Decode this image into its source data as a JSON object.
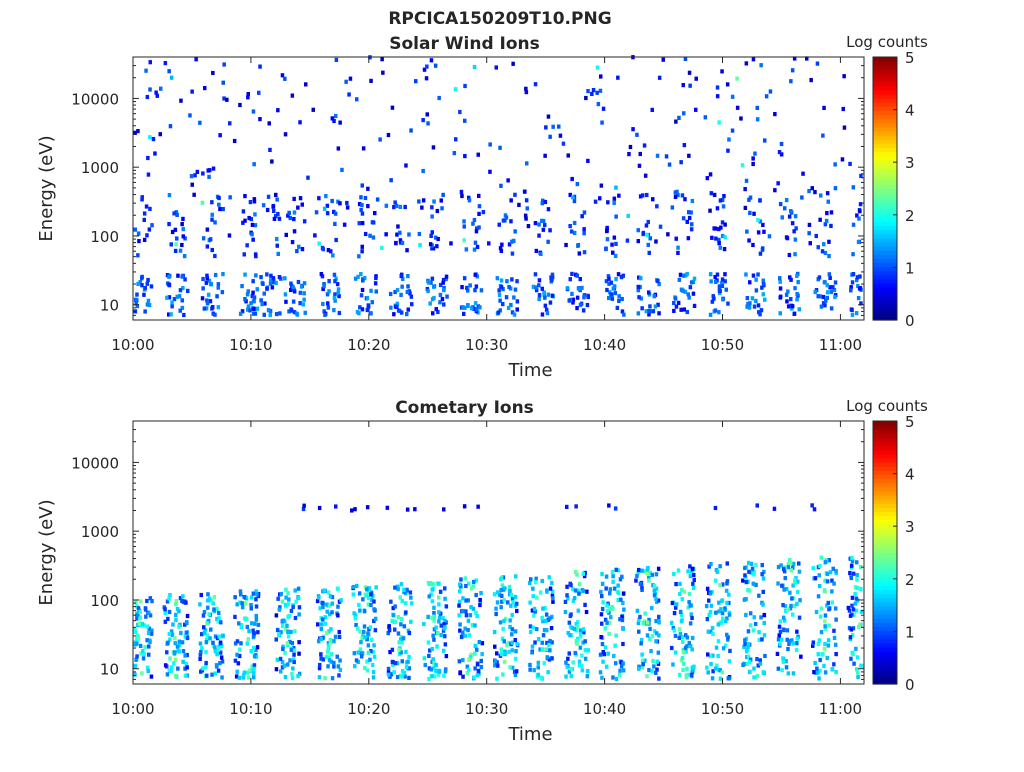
{
  "figure_title": "RPCICA150209T10.PNG",
  "chart_data": [
    {
      "type": "heatmap",
      "title": "Solar Wind Ions",
      "xlabel": "Time",
      "ylabel": "Energy (eV)",
      "x_ticks": [
        "10:00",
        "10:10",
        "10:20",
        "10:30",
        "10:40",
        "10:50",
        "11:00"
      ],
      "x_range": [
        "10:00",
        "11:02"
      ],
      "y_ticks": [
        10,
        100,
        1000,
        10000
      ],
      "y_tick_labels": [
        "10",
        "100",
        "1000",
        "10000"
      ],
      "y_range": [
        6,
        40000
      ],
      "y_scale": "log",
      "colorbar": {
        "label": "Log counts",
        "ticks": [
          "0",
          "1",
          "2",
          "3",
          "4",
          "5"
        ],
        "range": [
          0,
          5
        ],
        "colormap": "jet"
      },
      "features": {
        "description_of_bursts_minutes": [
          0.5,
          3.5,
          6.5,
          9.5,
          11.5,
          13.5,
          16.5,
          19.5,
          22.5,
          25.5,
          28.5,
          31.5,
          34.5,
          37.5,
          40.5,
          43.5,
          46.5,
          49.5,
          52.5,
          55.5,
          58.5,
          61.5
        ],
        "low_energy_band_eV": [
          10,
          30
        ],
        "sparse_high_energy_max_log_counts": 2
      }
    },
    {
      "type": "heatmap",
      "title": "Cometary Ions",
      "xlabel": "Time",
      "ylabel": "Energy (eV)",
      "x_ticks": [
        "10:00",
        "10:10",
        "10:20",
        "10:30",
        "10:40",
        "10:50",
        "11:00"
      ],
      "x_range": [
        "10:00",
        "11:02"
      ],
      "y_ticks": [
        10,
        100,
        1000,
        10000
      ],
      "y_tick_labels": [
        "10",
        "100",
        "1000",
        "10000"
      ],
      "y_range": [
        6,
        40000
      ],
      "y_scale": "log",
      "colorbar": {
        "label": "Log counts",
        "ticks": [
          "0",
          "1",
          "2",
          "3",
          "4",
          "5"
        ],
        "range": [
          0,
          5
        ],
        "colormap": "jet"
      },
      "features": {
        "burst_minutes": [
          0.5,
          3.5,
          6.5,
          9.5,
          13.0,
          16.5,
          19.5,
          22.5,
          25.5,
          28.5,
          31.5,
          34.5,
          37.5,
          40.5,
          43.5,
          46.5,
          49.5,
          52.5,
          55.5,
          58.5,
          61.5
        ],
        "main_band_eV": [
          8,
          300
        ],
        "max_log_counts": 2.8
      }
    }
  ]
}
